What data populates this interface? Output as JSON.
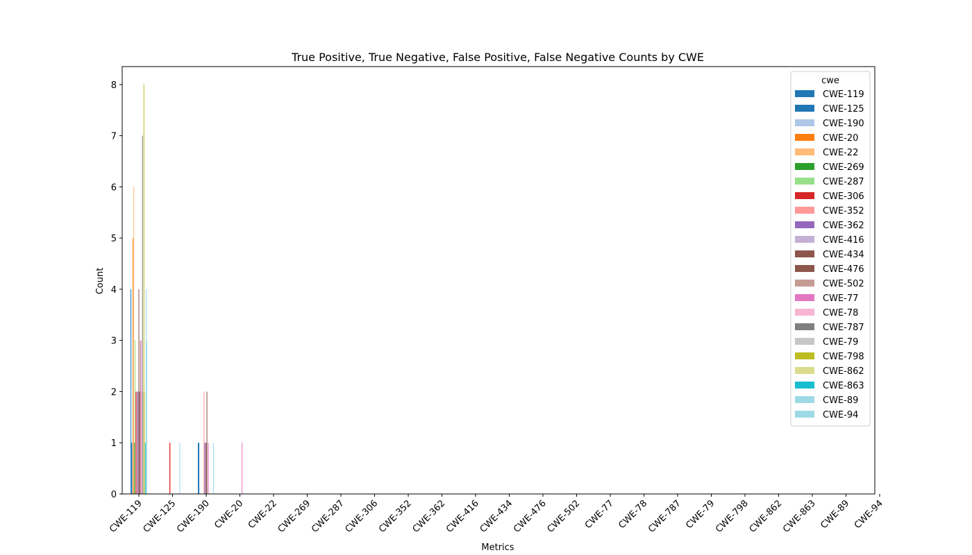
{
  "chart_data": {
    "type": "bar",
    "title": "True Positive, True Negative, False Positive, False Negative Counts by CWE",
    "xlabel": "Metrics",
    "ylabel": "Count",
    "ylim": [
      0,
      8.35
    ],
    "yticks": [
      0,
      1,
      2,
      3,
      4,
      5,
      6,
      7,
      8
    ],
    "grid": false,
    "legend_title": "cwe",
    "legend_position": "top-right",
    "categories": [
      "CWE-119",
      "CWE-125",
      "CWE-190",
      "CWE-20",
      "CWE-22",
      "CWE-269",
      "CWE-287",
      "CWE-306",
      "CWE-352",
      "CWE-362",
      "CWE-416",
      "CWE-434",
      "CWE-476",
      "CWE-502",
      "CWE-77",
      "CWE-78",
      "CWE-787",
      "CWE-79",
      "CWE-798",
      "CWE-862",
      "CWE-863",
      "CWE-89",
      "CWE-94"
    ],
    "series": [
      {
        "name": "CWE-119",
        "color": "#1f77b4",
        "values": [
          4,
          0,
          1,
          0,
          0,
          0,
          0,
          0,
          0,
          0,
          0,
          0,
          0,
          0,
          0,
          0,
          0,
          0,
          0,
          0,
          0,
          0,
          0
        ]
      },
      {
        "name": "CWE-125",
        "color": "#1f77b4",
        "values": [
          1,
          0,
          1,
          0,
          0,
          0,
          0,
          0,
          0,
          0,
          0,
          0,
          0,
          0,
          0,
          0,
          0,
          0,
          0,
          0,
          0,
          0,
          0
        ]
      },
      {
        "name": "CWE-190",
        "color": "#aec7e8",
        "values": [
          1,
          0,
          0,
          0,
          0,
          0,
          0,
          0,
          0,
          0,
          0,
          0,
          0,
          0,
          0,
          0,
          0,
          0,
          0,
          0,
          0,
          0,
          0
        ]
      },
      {
        "name": "CWE-20",
        "color": "#ff7f0e",
        "values": [
          5,
          0,
          0,
          0,
          0,
          0,
          0,
          0,
          0,
          0,
          0,
          0,
          0,
          0,
          0,
          0,
          0,
          0,
          0,
          0,
          0,
          0,
          0
        ]
      },
      {
        "name": "CWE-22",
        "color": "#ffbb78",
        "values": [
          6,
          0,
          0,
          0,
          0,
          0,
          0,
          0,
          0,
          0,
          0,
          0,
          0,
          0,
          0,
          0,
          0,
          0,
          0,
          0,
          0,
          0,
          0
        ]
      },
      {
        "name": "CWE-269",
        "color": "#2ca02c",
        "values": [
          1,
          0,
          0,
          0,
          0,
          0,
          0,
          0,
          0,
          0,
          0,
          0,
          0,
          0,
          0,
          0,
          0,
          0,
          0,
          0,
          0,
          0,
          0
        ]
      },
      {
        "name": "CWE-287",
        "color": "#98df8a",
        "values": [
          3,
          0,
          0,
          0,
          0,
          0,
          0,
          0,
          0,
          0,
          0,
          0,
          0,
          0,
          0,
          0,
          0,
          0,
          0,
          0,
          0,
          0,
          0
        ]
      },
      {
        "name": "CWE-306",
        "color": "#d62728",
        "values": [
          2,
          1,
          0,
          0,
          0,
          0,
          0,
          0,
          0,
          0,
          0,
          0,
          0,
          0,
          0,
          0,
          0,
          0,
          0,
          0,
          0,
          0,
          0
        ]
      },
      {
        "name": "CWE-352",
        "color": "#ff9896",
        "values": [
          2,
          1,
          2,
          0,
          0,
          0,
          0,
          0,
          0,
          0,
          0,
          0,
          0,
          0,
          0,
          0,
          0,
          0,
          0,
          0,
          0,
          0,
          0
        ]
      },
      {
        "name": "CWE-362",
        "color": "#9467bd",
        "values": [
          2,
          0,
          1,
          0,
          0,
          0,
          0,
          0,
          0,
          0,
          0,
          0,
          0,
          0,
          0,
          0,
          0,
          0,
          0,
          0,
          0,
          0,
          0
        ]
      },
      {
        "name": "CWE-416",
        "color": "#c5b0d5",
        "values": [
          2,
          0,
          1,
          0,
          0,
          0,
          0,
          0,
          0,
          0,
          0,
          0,
          0,
          0,
          0,
          0,
          0,
          0,
          0,
          0,
          0,
          0,
          0
        ]
      },
      {
        "name": "CWE-434",
        "color": "#8c564b",
        "values": [
          4,
          0,
          1,
          0,
          0,
          0,
          0,
          0,
          0,
          0,
          0,
          0,
          0,
          0,
          0,
          0,
          0,
          0,
          0,
          0,
          0,
          0,
          0
        ]
      },
      {
        "name": "CWE-476",
        "color": "#8c564b",
        "values": [
          2,
          0,
          2,
          0,
          0,
          0,
          0,
          0,
          0,
          0,
          0,
          0,
          0,
          0,
          0,
          0,
          0,
          0,
          0,
          0,
          0,
          0,
          0
        ]
      },
      {
        "name": "CWE-502",
        "color": "#c49c94",
        "values": [
          3,
          0,
          0,
          0,
          0,
          0,
          0,
          0,
          0,
          0,
          0,
          0,
          0,
          0,
          0,
          0,
          0,
          0,
          0,
          0,
          0,
          0,
          0
        ]
      },
      {
        "name": "CWE-77",
        "color": "#e377c2",
        "values": [
          3,
          0,
          1,
          1,
          0,
          0,
          0,
          0,
          0,
          0,
          0,
          0,
          0,
          0,
          0,
          0,
          0,
          0,
          0,
          0,
          0,
          0,
          0
        ]
      },
      {
        "name": "CWE-78",
        "color": "#f7b6d2",
        "values": [
          2,
          0,
          0,
          0,
          0,
          0,
          0,
          0,
          0,
          0,
          0,
          0,
          0,
          0,
          0,
          0,
          0,
          0,
          0,
          0,
          0,
          0,
          0
        ]
      },
      {
        "name": "CWE-787",
        "color": "#7f7f7f",
        "values": [
          7,
          0,
          0,
          0,
          0,
          0,
          0,
          0,
          0,
          0,
          0,
          0,
          0,
          0,
          0,
          0,
          0,
          0,
          0,
          0,
          0,
          0,
          0
        ]
      },
      {
        "name": "CWE-79",
        "color": "#c7c7c7",
        "values": [
          2,
          0,
          0,
          0,
          0,
          0,
          0,
          0,
          0,
          0,
          0,
          0,
          0,
          0,
          0,
          0,
          0,
          0,
          0,
          0,
          0,
          0,
          0
        ]
      },
      {
        "name": "CWE-798",
        "color": "#bcbd22",
        "values": [
          8,
          0,
          0,
          0,
          0,
          0,
          0,
          0,
          0,
          0,
          0,
          0,
          0,
          0,
          0,
          0,
          0,
          0,
          0,
          0,
          0,
          0,
          0
        ]
      },
      {
        "name": "CWE-862",
        "color": "#dbdb8d",
        "values": [
          2,
          0,
          0,
          0,
          0,
          0,
          0,
          0,
          0,
          0,
          0,
          0,
          0,
          0,
          0,
          0,
          0,
          0,
          0,
          0,
          0,
          0,
          0
        ]
      },
      {
        "name": "CWE-863",
        "color": "#17becf",
        "values": [
          1,
          0,
          0,
          0,
          0,
          0,
          0,
          0,
          0,
          0,
          0,
          0,
          0,
          0,
          0,
          0,
          0,
          0,
          0,
          0,
          0,
          0,
          0
        ]
      },
      {
        "name": "CWE-89",
        "color": "#9edae5",
        "values": [
          4,
          1,
          1,
          0,
          0,
          0,
          0,
          0,
          0,
          0,
          0,
          0,
          0,
          0,
          0,
          0,
          0,
          0,
          0,
          0,
          0,
          0,
          0
        ]
      },
      {
        "name": "CWE-94",
        "color": "#9edae5",
        "values": [
          3,
          0,
          0,
          0,
          0,
          0,
          0,
          0,
          0,
          0,
          0,
          0,
          0,
          0,
          0,
          0,
          0,
          0,
          0,
          0,
          0,
          0,
          0
        ]
      }
    ]
  }
}
